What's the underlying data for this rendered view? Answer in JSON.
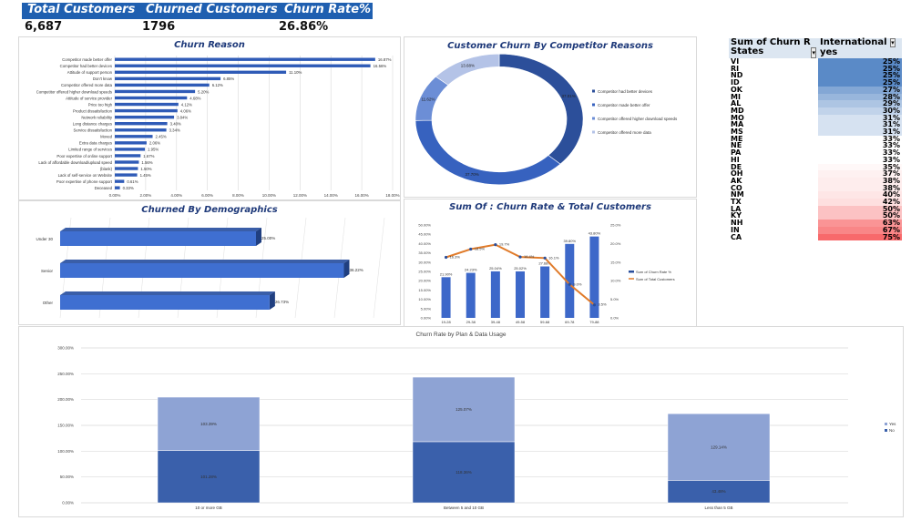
{
  "kpis": [
    {
      "label": "Total Customers",
      "value": "6,687"
    },
    {
      "label": "Churned Customers",
      "value": "1796"
    },
    {
      "label": "Churn Rate%",
      "value": "26.86%"
    }
  ],
  "colors": {
    "header": "#1f5fb0",
    "bar": "#2f5bb7",
    "line": "#e07b2a",
    "title": "#1f3a7a"
  },
  "chart_data": [
    {
      "type": "bar",
      "orientation": "horizontal",
      "title": "Churn Reason",
      "categories": [
        "Competitor made better offer",
        "Competitor had better devices",
        "Attitude of support person",
        "Don't know",
        "Competitor offered more data",
        "Competitor offered higher download speeds",
        "Attitude of service provider",
        "Price too high",
        "Product dissatisfaction",
        "Network reliability",
        "Long distance charges",
        "Service dissatisfaction",
        "Moved",
        "Extra data charges",
        "Limited range of services",
        "Poor expertise of online support",
        "Lack of affordable download/upload speed",
        "(blank)",
        "Lack of self-service on Website",
        "Poor expertise of phone support",
        "Deceased"
      ],
      "values": [
        16.87,
        16.56,
        11.1,
        6.85,
        6.12,
        5.2,
        4.68,
        4.12,
        4.06,
        3.84,
        3.4,
        3.34,
        2.45,
        2.06,
        1.95,
        1.67,
        1.56,
        1.5,
        1.45,
        0.61,
        0.33
      ],
      "labels": [
        "16.87%",
        "16.56%",
        "11.10%",
        "6.85%",
        "6.12%",
        "5.20%",
        "4.68%",
        "4.12%",
        "4.06%",
        "3.84%",
        "3.40%",
        "3.34%",
        "2.45%",
        "2.06%",
        "1.95%",
        "1.67%",
        "1.56%",
        "1.50%",
        "1.45%",
        "0.61%",
        "0.33%"
      ],
      "xlim": [
        0,
        18
      ],
      "xticks": [
        "0.00%",
        "2.00%",
        "4.00%",
        "6.00%",
        "8.00%",
        "10.00%",
        "12.00%",
        "14.00%",
        "16.00%",
        "18.00%"
      ],
      "grid": true
    },
    {
      "type": "pie",
      "donut": true,
      "title": "Customer Churn By Competitor Reasons",
      "categories": [
        "Competitor had better devices",
        "Competitor made better offer",
        "Competitor offered higher download speeds",
        "Competitor offered more data"
      ],
      "values": [
        37.01,
        37.7,
        11.62,
        13.68
      ],
      "labels": [
        "37.01%",
        "37.70%",
        "11.62%",
        "13.68%"
      ],
      "colors": [
        "#2c4f9a",
        "#3762bf",
        "#6c8ed6",
        "#b4c3e7"
      ],
      "legend": "right"
    },
    {
      "type": "bar",
      "orientation": "horizontal",
      "style": "3d",
      "title": "Churned By Demographics",
      "categories": [
        "Under 30",
        "Senior",
        "Other"
      ],
      "values": [
        25.0,
        36.22,
        26.73
      ],
      "labels": [
        "25.00%",
        "36.22%",
        "26.73%"
      ]
    },
    {
      "type": "bar+line",
      "title": "Sum Of : Churn Rate & Total Customers",
      "categories": [
        "19-28",
        "29-38",
        "39-48",
        "49-58",
        "59-68",
        "69-78",
        "79-88"
      ],
      "series": [
        {
          "name": "Sum of Churn Rate %",
          "type": "bar",
          "axis": "left",
          "values": [
            21.9,
            24.23,
            25.04,
            25.02,
            27.68,
            39.8,
            43.8
          ],
          "labels": [
            "21.90%",
            "24.23%",
            "25.04%",
            "25.02%",
            "27.68%",
            "39.80%",
            "43.80%"
          ]
        },
        {
          "name": "Sum of Total Customers",
          "type": "line",
          "axis": "right",
          "values": [
            16.3,
            18.5,
            19.7,
            16.4,
            16.1,
            9.0,
            3.5
          ],
          "labels": [
            "16.3%",
            "18.5%",
            "19.7%",
            "16.4%",
            "16.1%",
            "9.0%",
            "3.5%"
          ]
        }
      ],
      "ylim": [
        0,
        50
      ],
      "ylim_right": [
        0,
        25
      ],
      "yticks": [
        "0.00%",
        "5.00%",
        "10.00%",
        "15.00%",
        "20.00%",
        "25.00%",
        "30.00%",
        "35.00%",
        "40.00%",
        "45.00%",
        "50.00%"
      ],
      "yticks_right": [
        "0.0%",
        "5.0%",
        "10.0%",
        "15.0%",
        "20.0%",
        "25.0%"
      ],
      "legend": "right"
    },
    {
      "type": "bar",
      "stacked": true,
      "title": "Churn Rate by Plan & Data Usage",
      "categories": [
        "10 or more GB",
        "Between 5 and 10 GB",
        "Less than 5 GB"
      ],
      "series": [
        {
          "name": "No",
          "values": [
            101.28,
            118.36,
            43.48
          ],
          "labels": [
            "101.28%",
            "118.36%",
            "43.48%"
          ],
          "color": "#3a60ab"
        },
        {
          "name": "Yes",
          "values": [
            103.39,
            125.07,
            129.14
          ],
          "labels": [
            "103.39%",
            "125.07%",
            "129.14%"
          ],
          "color": "#8ea3d4"
        }
      ],
      "ylim": [
        0,
        300
      ],
      "yticks": [
        "0.00%",
        "50.00%",
        "100.00%",
        "150.00%",
        "200.00%",
        "250.00%",
        "300.00%"
      ],
      "legend": "right",
      "grid": true
    }
  ],
  "pivot": {
    "header1": "Sum of Churn R",
    "header2": "International",
    "row_label": "States",
    "col_value": "yes",
    "rows": [
      [
        "VI",
        25
      ],
      [
        "RI",
        25
      ],
      [
        "ND",
        25
      ],
      [
        "ID",
        25
      ],
      [
        "OK",
        27
      ],
      [
        "MI",
        28
      ],
      [
        "AL",
        29
      ],
      [
        "MD",
        30
      ],
      [
        "MO",
        31
      ],
      [
        "MA",
        31
      ],
      [
        "MS",
        31
      ],
      [
        "ME",
        33
      ],
      [
        "NE",
        33
      ],
      [
        "PA",
        33
      ],
      [
        "HI",
        33
      ],
      [
        "DE",
        35
      ],
      [
        "OH",
        37
      ],
      [
        "AK",
        38
      ],
      [
        "CO",
        38
      ],
      [
        "NM",
        40
      ],
      [
        "TX",
        42
      ],
      [
        "LA",
        50
      ],
      [
        "KY",
        50
      ],
      [
        "NH",
        63
      ],
      [
        "IN",
        67
      ],
      [
        "CA",
        75
      ]
    ]
  }
}
